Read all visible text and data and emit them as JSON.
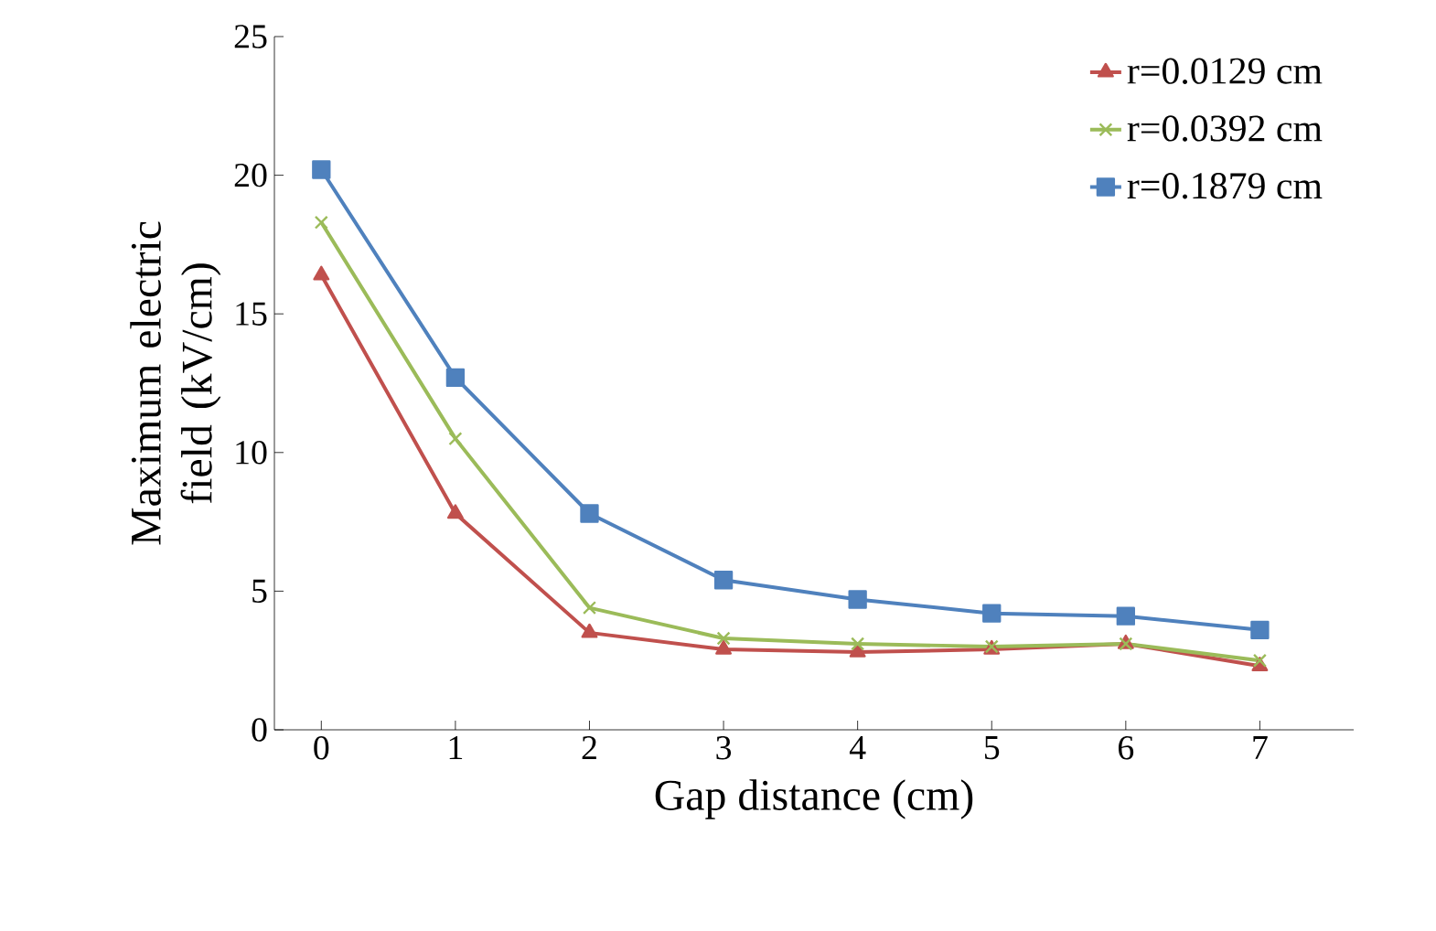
{
  "chart_data": {
    "type": "line",
    "xlabel": "Gap distance (cm)",
    "ylabel": "Maximum electric field (kV/cm)",
    "categories": [
      "0",
      "1",
      "2",
      "3",
      "4",
      "5",
      "6",
      "7"
    ],
    "ylim": [
      0,
      25
    ],
    "yticks": [
      0,
      5,
      10,
      15,
      20,
      25
    ],
    "grid": false,
    "legend": "top right",
    "series": [
      {
        "name": "r=0.0129 cm",
        "color": "#c0504d",
        "marker": "triangle",
        "values": [
          16.4,
          7.8,
          3.5,
          2.9,
          2.8,
          2.9,
          3.1,
          2.3
        ]
      },
      {
        "name": "r=0.0392 cm",
        "color": "#9bbb59",
        "marker": "cross",
        "values": [
          18.3,
          10.5,
          4.4,
          3.3,
          3.1,
          3.0,
          3.1,
          2.5
        ]
      },
      {
        "name": "r=0.1879 cm",
        "color": "#4f81bd",
        "marker": "square",
        "values": [
          20.2,
          12.7,
          7.8,
          5.4,
          4.7,
          4.2,
          4.1,
          3.6
        ]
      }
    ]
  }
}
